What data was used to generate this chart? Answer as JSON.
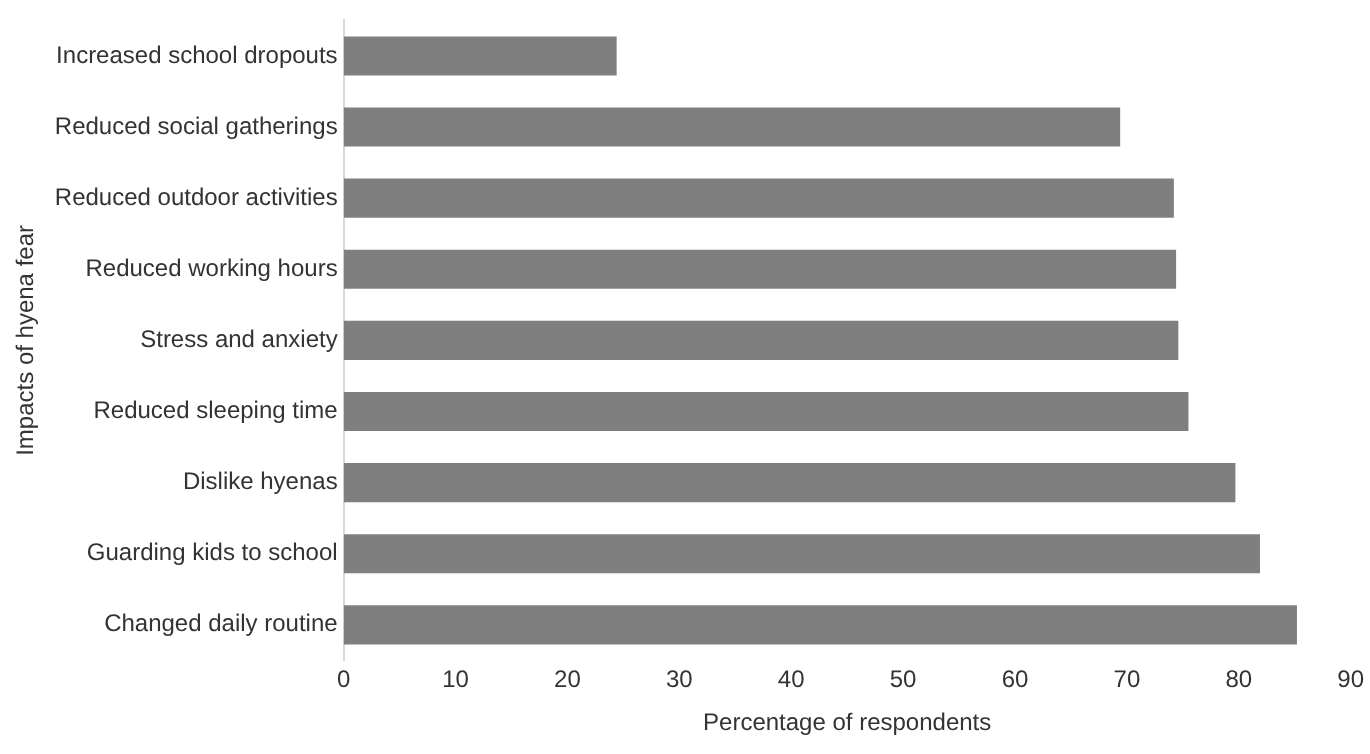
{
  "chart_data": {
    "type": "bar",
    "orientation": "horizontal",
    "categories": [
      "Increased school dropouts",
      "Reduced social gatherings",
      "Reduced outdoor activities",
      "Reduced working hours",
      "Stress and anxiety",
      "Reduced sleeping time",
      "Dislike hyenas",
      "Guarding kids to school",
      "Changed daily routine"
    ],
    "values": [
      24.4,
      69.4,
      74.2,
      74.4,
      74.6,
      75.5,
      79.7,
      81.9,
      85.2
    ],
    "color": "#7f7f7f",
    "xlabel": "Percentage of respondents",
    "ylabel": "Impacts of hyena fear",
    "xlim": [
      0,
      90
    ],
    "xticks": [
      0,
      10,
      20,
      30,
      40,
      50,
      60,
      70,
      80,
      90
    ],
    "grid": false,
    "legend": false
  }
}
